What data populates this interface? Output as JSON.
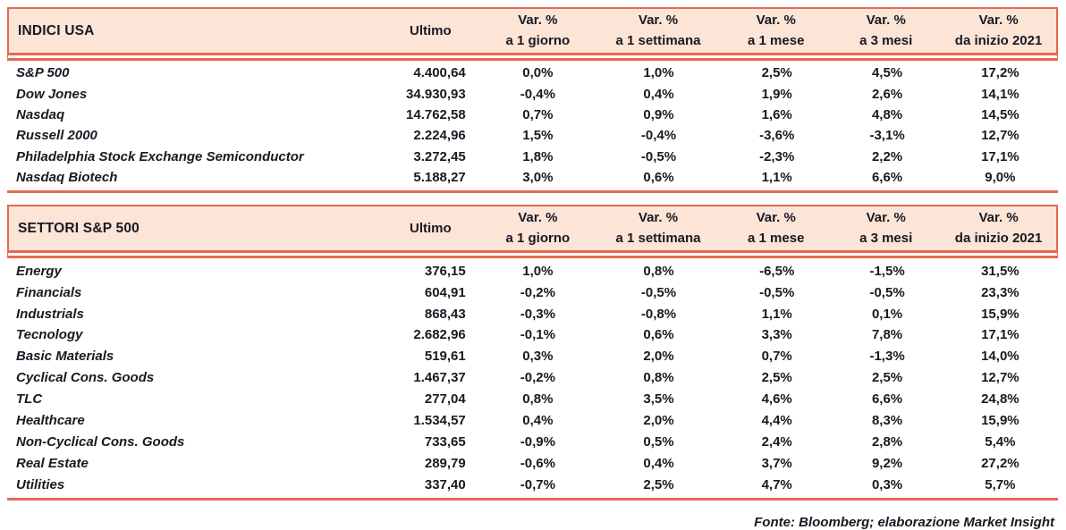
{
  "colors": {
    "accent": "#E8694F",
    "header_bg": "#FCE4D6",
    "text": "#191923"
  },
  "columns": {
    "ultimo_label": "Ultimo",
    "var_headers": [
      {
        "line1": "Var. %",
        "line2": "a 1 giorno"
      },
      {
        "line1": "Var. %",
        "line2": "a 1 settimana"
      },
      {
        "line1": "Var. %",
        "line2": "a 1 mese"
      },
      {
        "line1": "Var. %",
        "line2": "a 3 mesi"
      },
      {
        "line1": "Var. %",
        "line2": "da inizio 2021"
      }
    ]
  },
  "tables": [
    {
      "title": "INDICI USA",
      "rows": [
        {
          "name": "S&P 500",
          "ultimo": "4.400,64",
          "vars": [
            "0,0%",
            "1,0%",
            "2,5%",
            "4,5%",
            "17,2%"
          ]
        },
        {
          "name": "Dow Jones",
          "ultimo": "34.930,93",
          "vars": [
            "-0,4%",
            "0,4%",
            "1,9%",
            "2,6%",
            "14,1%"
          ]
        },
        {
          "name": "Nasdaq",
          "ultimo": "14.762,58",
          "vars": [
            "0,7%",
            "0,9%",
            "1,6%",
            "4,8%",
            "14,5%"
          ]
        },
        {
          "name": "Russell 2000",
          "ultimo": "2.224,96",
          "vars": [
            "1,5%",
            "-0,4%",
            "-3,6%",
            "-3,1%",
            "12,7%"
          ]
        },
        {
          "name": "Philadelphia Stock Exchange Semiconductor",
          "ultimo": "3.272,45",
          "vars": [
            "1,8%",
            "-0,5%",
            "-2,3%",
            "2,2%",
            "17,1%"
          ]
        },
        {
          "name": "Nasdaq Biotech",
          "ultimo": "5.188,27",
          "vars": [
            "3,0%",
            "0,6%",
            "1,1%",
            "6,6%",
            "9,0%"
          ]
        }
      ]
    },
    {
      "title": "SETTORI S&P 500",
      "rows": [
        {
          "name": "Energy",
          "ultimo": "376,15",
          "vars": [
            "1,0%",
            "0,8%",
            "-6,5%",
            "-1,5%",
            "31,5%"
          ]
        },
        {
          "name": "Financials",
          "ultimo": "604,91",
          "vars": [
            "-0,2%",
            "-0,5%",
            "-0,5%",
            "-0,5%",
            "23,3%"
          ]
        },
        {
          "name": "Industrials",
          "ultimo": "868,43",
          "vars": [
            "-0,3%",
            "-0,8%",
            "1,1%",
            "0,1%",
            "15,9%"
          ]
        },
        {
          "name": "Tecnology",
          "ultimo": "2.682,96",
          "vars": [
            "-0,1%",
            "0,6%",
            "3,3%",
            "7,8%",
            "17,1%"
          ]
        },
        {
          "name": "Basic Materials",
          "ultimo": "519,61",
          "vars": [
            "0,3%",
            "2,0%",
            "0,7%",
            "-1,3%",
            "14,0%"
          ]
        },
        {
          "name": "Cyclical Cons. Goods",
          "ultimo": "1.467,37",
          "vars": [
            "-0,2%",
            "0,8%",
            "2,5%",
            "2,5%",
            "12,7%"
          ]
        },
        {
          "name": "TLC",
          "ultimo": "277,04",
          "vars": [
            "0,8%",
            "3,5%",
            "4,6%",
            "6,6%",
            "24,8%"
          ]
        },
        {
          "name": "Healthcare",
          "ultimo": "1.534,57",
          "vars": [
            "0,4%",
            "2,0%",
            "4,4%",
            "8,3%",
            "15,9%"
          ]
        },
        {
          "name": "Non-Cyclical Cons. Goods",
          "ultimo": "733,65",
          "vars": [
            "-0,9%",
            "0,5%",
            "2,4%",
            "2,8%",
            "5,4%"
          ]
        },
        {
          "name": "Real Estate",
          "ultimo": "289,79",
          "vars": [
            "-0,6%",
            "0,4%",
            "3,7%",
            "9,2%",
            "27,2%"
          ]
        },
        {
          "name": "Utilities",
          "ultimo": "337,40",
          "vars": [
            "-0,7%",
            "2,5%",
            "4,7%",
            "0,3%",
            "5,7%"
          ]
        }
      ]
    }
  ],
  "footer": "Fonte: Bloomberg; elaborazione Market Insight"
}
